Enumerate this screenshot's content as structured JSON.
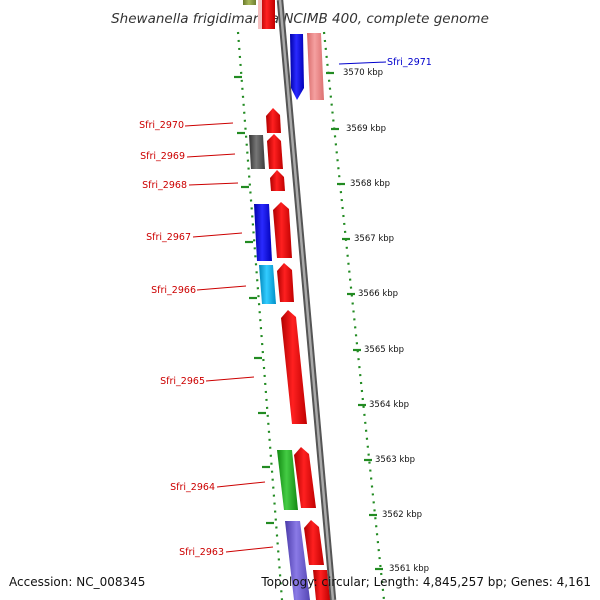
{
  "title": "Shewanella frigidimarina NCIMB 400, complete genome",
  "footer": {
    "accession": "Accession: NC_008345",
    "topology": "Topology: circular; Length: 4,845,257 bp; Genes: 4,161"
  },
  "ticks": [
    "3570 kbp",
    "3569 kbp",
    "3568 kbp",
    "3567 kbp",
    "3566 kbp",
    "3565 kbp",
    "3564 kbp",
    "3563 kbp",
    "3562 kbp",
    "3561 kbp"
  ],
  "genes": [
    {
      "label": "Sfri_2971",
      "color": "#0000cc"
    },
    {
      "label": "Sfri_2970",
      "color": "#cc0000"
    },
    {
      "label": "Sfri_2969",
      "color": "#cc0000"
    },
    {
      "label": "Sfri_2968",
      "color": "#cc0000"
    },
    {
      "label": "Sfri_2967",
      "color": "#cc0000"
    },
    {
      "label": "Sfri_2966",
      "color": "#cc0000"
    },
    {
      "label": "Sfri_2965",
      "color": "#cc0000"
    },
    {
      "label": "Sfri_2964",
      "color": "#cc0000"
    },
    {
      "label": "Sfri_2963",
      "color": "#cc0000"
    }
  ],
  "colors": {
    "backbone": "#888888",
    "dotted_ring": "#228b22",
    "red_gene": "#ee0000",
    "pink_gene": "#f08080",
    "blue_gene": "#0000ee",
    "cyan_gene": "#00aadd",
    "grey_gene": "#555555",
    "green_gene": "#22aa22",
    "purple_gene": "#6a5acd",
    "olive_gene": "#8a9a3a"
  }
}
